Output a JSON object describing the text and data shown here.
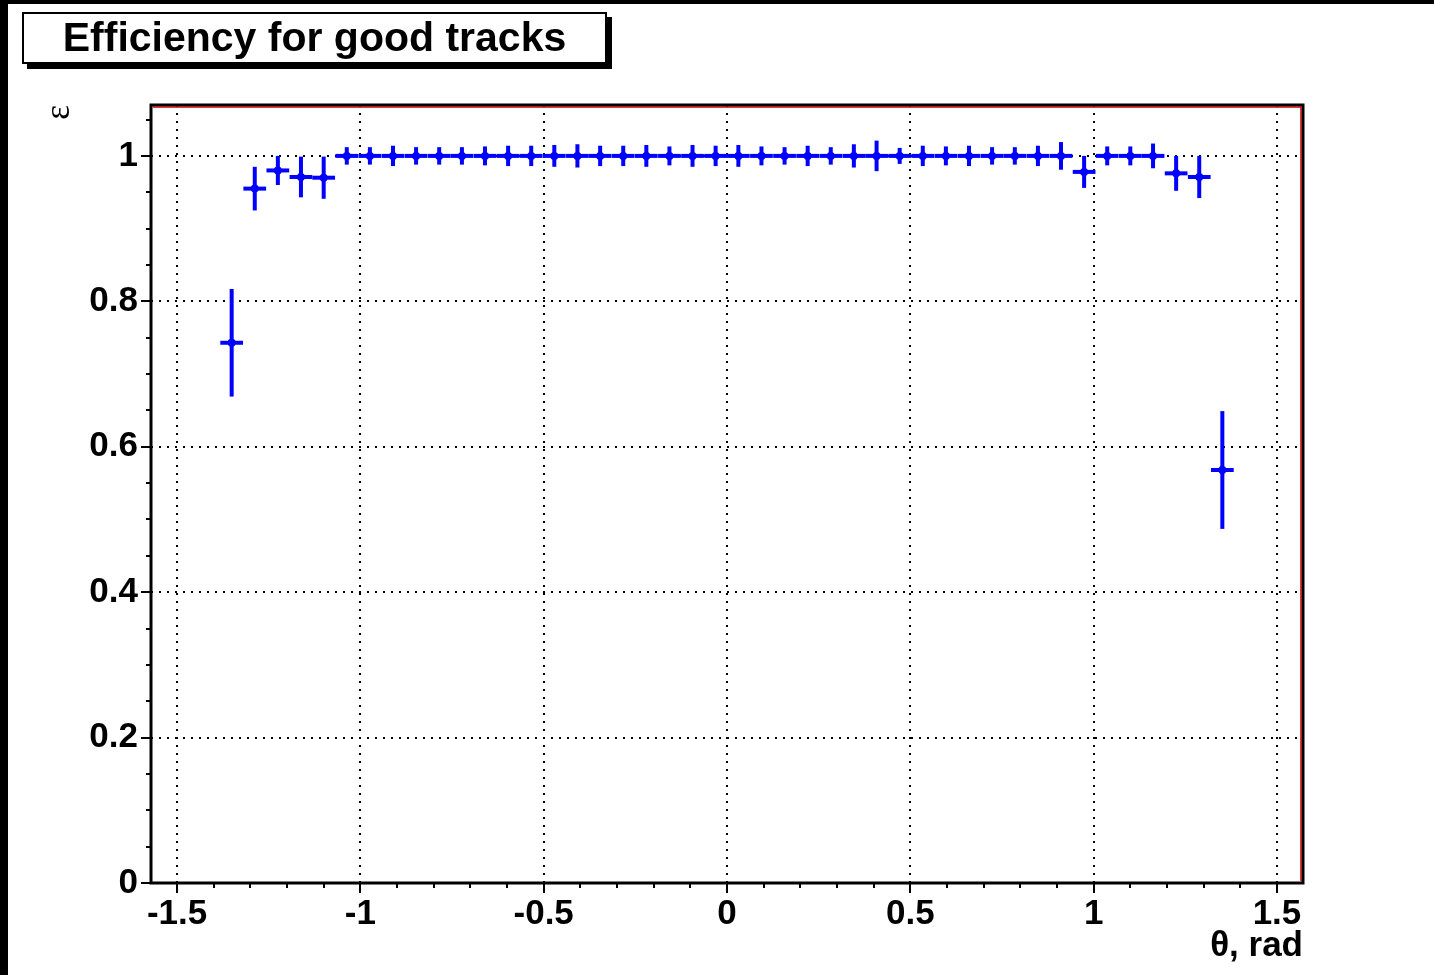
{
  "chart_data": {
    "type": "scatter",
    "title": "Efficiency for good tracks",
    "xlabel": "θ, rad",
    "ylabel": "ε",
    "x": [
      -1.351,
      -1.288,
      -1.225,
      -1.162,
      -1.1,
      -1.037,
      -0.974,
      -0.911,
      -0.848,
      -0.785,
      -0.723,
      -0.66,
      -0.597,
      -0.534,
      -0.471,
      -0.408,
      -0.346,
      -0.283,
      -0.22,
      -0.157,
      -0.094,
      -0.031,
      0.031,
      0.094,
      0.157,
      0.22,
      0.283,
      0.346,
      0.408,
      0.471,
      0.534,
      0.597,
      0.66,
      0.723,
      0.785,
      0.848,
      0.911,
      0.974,
      1.037,
      1.1,
      1.162,
      1.225,
      1.288,
      1.351
    ],
    "values": [
      0.743,
      0.955,
      0.98,
      0.971,
      0.97,
      1,
      1,
      1,
      1,
      1,
      1,
      1,
      1,
      1,
      1,
      1,
      1,
      1,
      1,
      1,
      1,
      1,
      1,
      1,
      1,
      1,
      1,
      1,
      1,
      1,
      1,
      1,
      1,
      1,
      1,
      1,
      1,
      0.978,
      1,
      1,
      1,
      0.976,
      0.971,
      0.568
    ],
    "errors": [
      0.074,
      0.03,
      0.02,
      0.028,
      0.029,
      0.012,
      0.012,
      0.014,
      0.012,
      0.012,
      0.012,
      0.013,
      0.014,
      0.014,
      0.015,
      0.016,
      0.014,
      0.014,
      0.015,
      0.013,
      0.015,
      0.014,
      0.015,
      0.013,
      0.012,
      0.014,
      0.012,
      0.016,
      0.021,
      0.011,
      0.014,
      0.013,
      0.014,
      0.012,
      0.012,
      0.014,
      0.019,
      0.022,
      0.013,
      0.013,
      0.017,
      0.024,
      0.029,
      0.081
    ],
    "xerrors": [
      0.031,
      0.031,
      0.031,
      0.031,
      0.031,
      0.031,
      0.031,
      0.031,
      0.031,
      0.031,
      0.031,
      0.031,
      0.031,
      0.031,
      0.031,
      0.031,
      0.031,
      0.031,
      0.031,
      0.031,
      0.031,
      0.031,
      0.031,
      0.031,
      0.031,
      0.031,
      0.031,
      0.031,
      0.031,
      0.031,
      0.031,
      0.031,
      0.031,
      0.031,
      0.031,
      0.031,
      0.031,
      0.031,
      0.031,
      0.031,
      0.031,
      0.031,
      0.031,
      0.031
    ],
    "color": "#0000ff",
    "marker": "circle",
    "xlim": [
      -1.571,
      1.571
    ],
    "ylim": [
      0,
      1.07
    ],
    "xticks": [
      -1.5,
      {
        "value": -1.4,
        "label": null
      },
      {
        "value": -1.3,
        "label": null
      },
      {
        "value": -1.2,
        "label": null
      },
      {
        "value": -1.1,
        "label": null
      },
      -1,
      {
        "value": -0.9,
        "label": null
      },
      {
        "value": -0.8,
        "label": null
      },
      {
        "value": -0.7,
        "label": null
      },
      {
        "value": -0.6,
        "label": null
      },
      -0.5,
      {
        "value": -0.4,
        "label": null
      },
      {
        "value": -0.3,
        "label": null
      },
      {
        "value": -0.2,
        "label": null
      },
      {
        "value": -0.1,
        "label": null
      },
      0,
      {
        "value": 0.1,
        "label": null
      },
      {
        "value": 0.2,
        "label": null
      },
      {
        "value": 0.3,
        "label": null
      },
      {
        "value": 0.4,
        "label": null
      },
      0.5,
      {
        "value": 0.6,
        "label": null
      },
      {
        "value": 0.7,
        "label": null
      },
      {
        "value": 0.8,
        "label": null
      },
      {
        "value": 0.9,
        "label": null
      },
      1,
      {
        "value": 1.1,
        "label": null
      },
      {
        "value": 1.2,
        "label": null
      },
      {
        "value": 1.3,
        "label": null
      },
      {
        "value": 1.4,
        "label": null
      },
      1.5
    ],
    "yticks": [
      0,
      {
        "value": 0.05,
        "label": null
      },
      {
        "value": 0.1,
        "label": null
      },
      {
        "value": 0.15,
        "label": null
      },
      0.2,
      {
        "value": 0.25,
        "label": null
      },
      {
        "value": 0.3,
        "label": null
      },
      {
        "value": 0.35,
        "label": null
      },
      0.4,
      {
        "value": 0.45,
        "label": null
      },
      {
        "value": 0.5,
        "label": null
      },
      {
        "value": 0.55,
        "label": null
      },
      0.6,
      {
        "value": 0.65,
        "label": null
      },
      {
        "value": 0.7,
        "label": null
      },
      {
        "value": 0.75,
        "label": null
      },
      0.8,
      {
        "value": 0.85,
        "label": null
      },
      {
        "value": 0.9,
        "label": null
      },
      {
        "value": 0.95,
        "label": null
      },
      1,
      {
        "value": 1.05,
        "label": null
      }
    ],
    "grid": true
  }
}
